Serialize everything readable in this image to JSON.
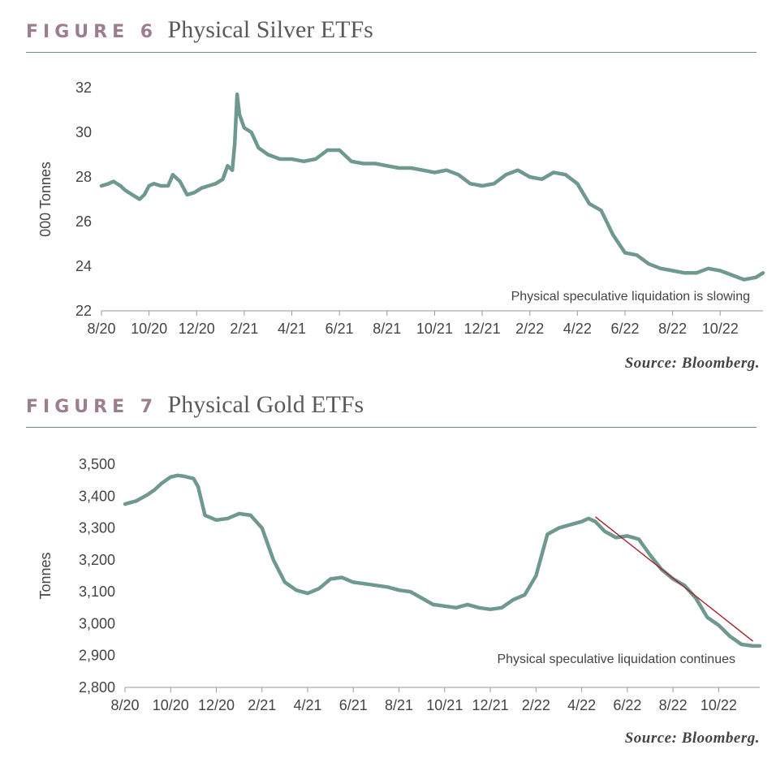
{
  "figures": [
    {
      "label": "FIGURE 6",
      "title": "Physical Silver ETFs",
      "source": "Source: Bloomberg."
    },
    {
      "label": "FIGURE 7",
      "title": "Physical Gold ETFs",
      "source": "Source: Bloomberg."
    }
  ],
  "colors": {
    "line": "#6f9990",
    "trend": "#a3232a",
    "rule": "#6f8a80",
    "label": "#9c7f8f"
  },
  "chart_data": [
    {
      "type": "line",
      "title": "Physical Silver ETFs",
      "ylabel": "000 Tonnes",
      "xlabel": "",
      "ylim": [
        22,
        32
      ],
      "xlim": [
        0,
        27.8
      ],
      "yticks": [
        22,
        24,
        26,
        28,
        30,
        32
      ],
      "ytick_labels": [
        "22",
        "24",
        "26",
        "28",
        "30",
        "32"
      ],
      "xticks": [
        0,
        2,
        4,
        6,
        8,
        10,
        12,
        14,
        16,
        18,
        20,
        22,
        24,
        26
      ],
      "xtick_labels": [
        "8/20",
        "10/20",
        "12/20",
        "2/21",
        "4/21",
        "6/21",
        "8/21",
        "10/21",
        "12/21",
        "2/22",
        "4/22",
        "6/22",
        "8/22",
        "10/22"
      ],
      "x_unit": "months since 8/20",
      "annotation": "Physical speculative liquidation is slowing",
      "series": [
        {
          "x": [
            0,
            0.3,
            0.5,
            0.8,
            1.0,
            1.3,
            1.6,
            1.8,
            2.0,
            2.2,
            2.5,
            2.8,
            3.0,
            3.3,
            3.6,
            3.9,
            4.2,
            4.5,
            4.8,
            5.1,
            5.3,
            5.5,
            5.6,
            5.7,
            5.8,
            6.0,
            6.3,
            6.6,
            7.0,
            7.5,
            8.0,
            8.5,
            9.0,
            9.5,
            10.0,
            10.5,
            11.0,
            11.5,
            12.0,
            12.5,
            13.0,
            13.5,
            14.0,
            14.5,
            15.0,
            15.5,
            16.0,
            16.5,
            17.0,
            17.5,
            18.0,
            18.5,
            19.0,
            19.5,
            20.0,
            20.5,
            21.0,
            21.5,
            22.0,
            22.5,
            23.0,
            23.5,
            24.0,
            24.5,
            25.0,
            25.5,
            26.0,
            26.5,
            27.0,
            27.5,
            27.8
          ],
          "y": [
            27.6,
            27.7,
            27.8,
            27.6,
            27.4,
            27.2,
            27.0,
            27.2,
            27.6,
            27.7,
            27.6,
            27.6,
            28.1,
            27.8,
            27.2,
            27.3,
            27.5,
            27.6,
            27.7,
            27.9,
            28.5,
            28.3,
            29.5,
            31.7,
            30.8,
            30.2,
            30.0,
            29.3,
            29.0,
            28.8,
            28.8,
            28.7,
            28.8,
            29.2,
            29.2,
            28.7,
            28.6,
            28.6,
            28.5,
            28.4,
            28.4,
            28.3,
            28.2,
            28.3,
            28.1,
            27.7,
            27.6,
            27.7,
            28.1,
            28.3,
            28.0,
            27.9,
            28.2,
            28.1,
            27.7,
            26.8,
            26.5,
            25.4,
            24.6,
            24.5,
            24.1,
            23.9,
            23.8,
            23.7,
            23.7,
            23.9,
            23.8,
            23.6,
            23.4,
            23.5,
            23.7
          ]
        }
      ]
    },
    {
      "type": "line",
      "title": "Physical Gold ETFs",
      "ylabel": "Tonnes",
      "xlabel": "",
      "ylim": [
        2800,
        3500
      ],
      "xlim": [
        0,
        27.8
      ],
      "yticks": [
        2800,
        2900,
        3000,
        3100,
        3200,
        3300,
        3400,
        3500
      ],
      "ytick_labels": [
        "2,800",
        "2,900",
        "3,000",
        "3,100",
        "3,200",
        "3,300",
        "3,400",
        "3,500"
      ],
      "xticks": [
        0,
        2,
        4,
        6,
        8,
        10,
        12,
        14,
        16,
        18,
        20,
        22,
        24,
        26
      ],
      "xtick_labels": [
        "8/20",
        "10/20",
        "12/20",
        "2/21",
        "4/21",
        "6/21",
        "8/21",
        "10/21",
        "12/21",
        "2/22",
        "4/22",
        "6/22",
        "8/22",
        "10/22"
      ],
      "x_unit": "months since 8/20",
      "annotation": "Physical speculative liquidation continues",
      "trendline": {
        "x": [
          20.6,
          27.5
        ],
        "y": [
          3335,
          2945
        ]
      },
      "series": [
        {
          "x": [
            0,
            0.5,
            1.0,
            1.3,
            1.6,
            2.0,
            2.3,
            2.6,
            3.0,
            3.2,
            3.5,
            4.0,
            4.5,
            5.0,
            5.5,
            6.0,
            6.5,
            7.0,
            7.5,
            8.0,
            8.5,
            9.0,
            9.5,
            10.0,
            10.5,
            11.0,
            11.5,
            12.0,
            12.5,
            13.0,
            13.5,
            14.0,
            14.5,
            15.0,
            15.5,
            16.0,
            16.5,
            17.0,
            17.5,
            18.0,
            18.5,
            19.0,
            19.5,
            20.0,
            20.3,
            20.6,
            21.0,
            21.5,
            22.0,
            22.5,
            23.0,
            23.5,
            24.0,
            24.5,
            25.0,
            25.5,
            26.0,
            26.5,
            27.0,
            27.5,
            27.8
          ],
          "y": [
            3375,
            3385,
            3405,
            3420,
            3440,
            3460,
            3465,
            3462,
            3455,
            3430,
            3340,
            3325,
            3330,
            3345,
            3340,
            3300,
            3200,
            3130,
            3105,
            3095,
            3110,
            3140,
            3145,
            3130,
            3125,
            3120,
            3115,
            3105,
            3100,
            3080,
            3060,
            3055,
            3050,
            3060,
            3050,
            3045,
            3050,
            3075,
            3090,
            3150,
            3280,
            3300,
            3310,
            3320,
            3330,
            3320,
            3290,
            3270,
            3275,
            3265,
            3215,
            3170,
            3140,
            3120,
            3080,
            3020,
            2995,
            2960,
            2935,
            2930,
            2930
          ]
        }
      ]
    }
  ]
}
